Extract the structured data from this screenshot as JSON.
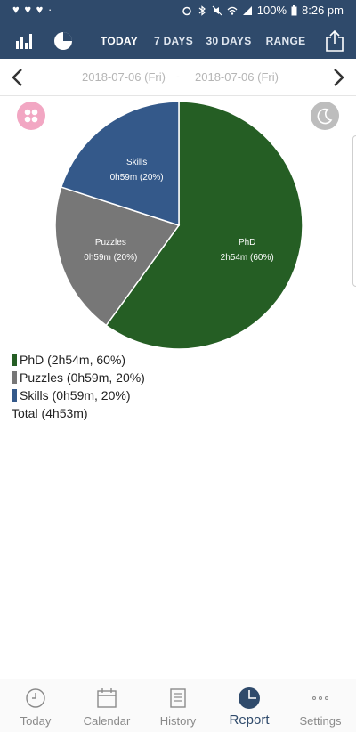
{
  "status": {
    "left_text": "♥ ♥ ♥ ·",
    "battery_text": "100%",
    "time": "8:26 pm"
  },
  "toolbar": {
    "tabs": [
      {
        "label": "TODAY",
        "active": true
      },
      {
        "label": "7 DAYS",
        "active": false
      },
      {
        "label": "30 DAYS",
        "active": false
      },
      {
        "label": "RANGE",
        "active": false
      }
    ],
    "icons": [
      "bar-chart-icon",
      "pie-chart-icon",
      "share-icon"
    ]
  },
  "date_range": {
    "start": "2018-07-06 (Fri)",
    "separator": "-",
    "end": "2018-07-06 (Fri)"
  },
  "chart_data": {
    "type": "pie",
    "slices": [
      {
        "name": "PhD",
        "value": 60,
        "duration": "2h54m",
        "label_line1": "PhD",
        "label_line2": "2h54m (60%)",
        "color": "#255e24"
      },
      {
        "name": "Puzzles",
        "value": 20,
        "duration": "0h59m",
        "label_line1": "Puzzles",
        "label_line2": "0h59m (20%)",
        "color": "#777777"
      },
      {
        "name": "Skills",
        "value": 20,
        "duration": "0h59m",
        "label_line1": "Skills",
        "label_line2": "0h59m (20%)",
        "color": "#34598a"
      }
    ]
  },
  "legend": {
    "items": [
      {
        "text": "PhD (2h54m, 60%)",
        "color": "#255e24"
      },
      {
        "text": "Puzzles (0h59m, 20%)",
        "color": "#777777"
      },
      {
        "text": "Skills (0h59m, 20%)",
        "color": "#34598a"
      }
    ],
    "total": "Total (4h53m)"
  },
  "bottom_nav": [
    {
      "label": "Today",
      "icon": "clock-icon",
      "active": false
    },
    {
      "label": "Calendar",
      "icon": "calendar-icon",
      "active": false
    },
    {
      "label": "History",
      "icon": "history-icon",
      "active": false
    },
    {
      "label": "Report",
      "icon": "report-icon",
      "active": true
    },
    {
      "label": "Settings",
      "icon": "more-icon",
      "active": false
    }
  ],
  "colors": {
    "primary": "#2f4a6b",
    "pink_button": "#f2a7c3",
    "gray_button": "#bdbdbd"
  }
}
